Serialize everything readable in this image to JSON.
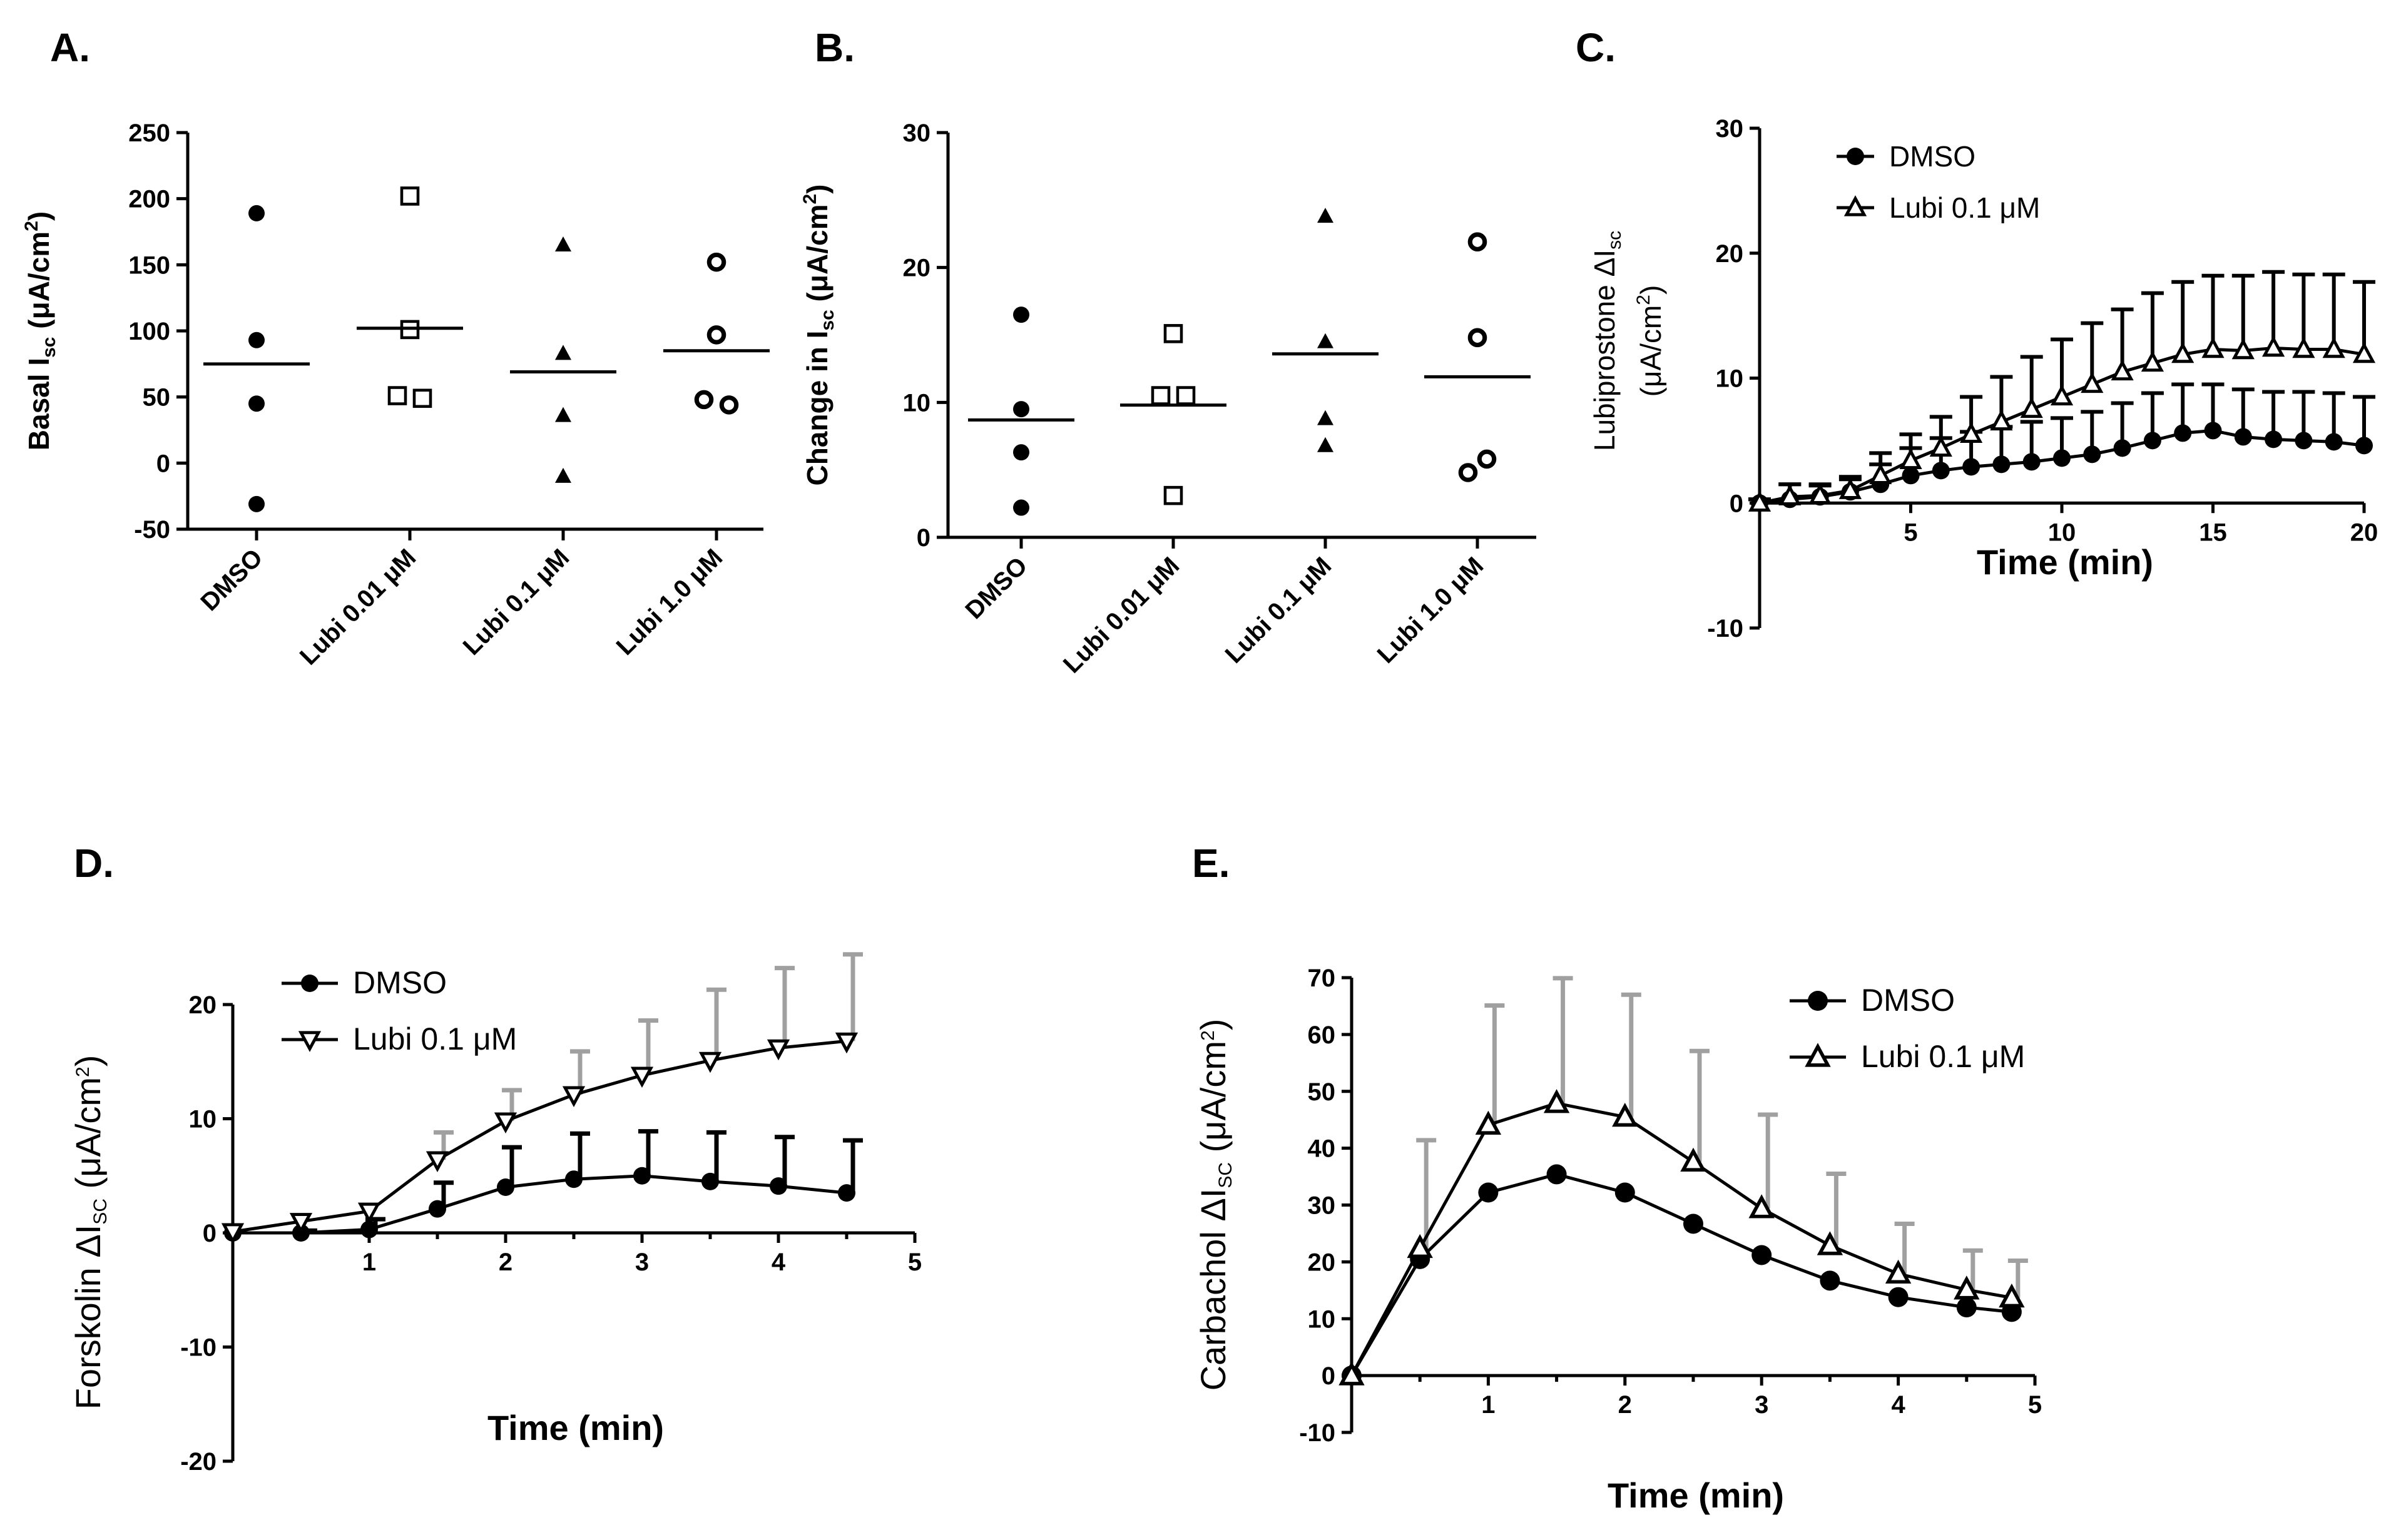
{
  "chart_data": [
    {
      "id": "A",
      "panel_label": "A.",
      "type": "scatter",
      "ylabel": "Basal I",
      "ylabel_sub": "sc",
      "ylabel_unit": "(μA/cm",
      "ylabel_sup": "2",
      "ylabel_close": ")",
      "ylim": [
        -50,
        250
      ],
      "yticks": [
        "-50",
        "0",
        "50",
        "100",
        "150",
        "200",
        "250"
      ],
      "categories": [
        "DMSO",
        "Lubi 0.01 μM",
        "Lubi 0.1 μM",
        "Lubi 1.0 μM"
      ],
      "markers": [
        "circle-filled",
        "square-open",
        "triangle-filled",
        "circle-open"
      ],
      "points": [
        [
          189,
          93,
          45,
          -31
        ],
        [
          202,
          101,
          51,
          49
        ],
        [
          165,
          83,
          36,
          -10
        ],
        [
          152,
          97,
          48,
          44
        ]
      ],
      "means": [
        75,
        102,
        69,
        85
      ]
    },
    {
      "id": "B",
      "panel_label": "B.",
      "type": "scatter",
      "ylabel": "Change in I",
      "ylabel_sub": "sc",
      "ylabel_unit": "(μA/cm",
      "ylabel_sup": "2",
      "ylabel_close": ")",
      "ylim": [
        0,
        30
      ],
      "yticks": [
        "0",
        "10",
        "20",
        "30"
      ],
      "categories": [
        "DMSO",
        "Lubi 0.01 μM",
        "Lubi 0.1 μM",
        "Lubi 1.0 μM"
      ],
      "markers": [
        "circle-filled",
        "square-open",
        "triangle-filled",
        "circle-open"
      ],
      "points": [
        [
          16.5,
          9.5,
          6.3,
          2.2
        ],
        [
          15.1,
          10.5,
          10.5,
          3.1
        ],
        [
          23.8,
          14.5,
          8.8,
          6.8
        ],
        [
          21.9,
          14.8,
          5.8,
          4.8
        ]
      ],
      "means": [
        8.7,
        9.8,
        13.6,
        11.9
      ]
    },
    {
      "id": "C",
      "panel_label": "C.",
      "type": "line",
      "ylabel": "Lubiprostone ΔI",
      "ylabel_sub": "sc",
      "ylabel2": "(μA/cm",
      "ylabel2_sup": "2",
      "ylabel2_close": ")",
      "xlabel": "Time (min)",
      "xlim": [
        0,
        20
      ],
      "ylim": [
        -10,
        30
      ],
      "xticks": [
        "5",
        "10",
        "15",
        "20"
      ],
      "yticks": [
        "-10",
        "0",
        "10",
        "20",
        "30"
      ],
      "series": [
        {
          "name": "DMSO",
          "marker": "circle-filled",
          "x": [
            0,
            1,
            2,
            3,
            4,
            5,
            6,
            7,
            8,
            9,
            10,
            11,
            12,
            13,
            14,
            15,
            16,
            17,
            18,
            19,
            20
          ],
          "y": [
            0,
            0.3,
            0.5,
            0.9,
            1.5,
            2.2,
            2.6,
            2.9,
            3.1,
            3.3,
            3.6,
            3.9,
            4.4,
            5.0,
            5.6,
            5.8,
            5.3,
            5.1,
            5.0,
            4.9,
            4.6
          ],
          "err": [
            0.3,
            1.2,
            0.9,
            1.0,
            1.6,
            2.2,
            2.6,
            2.8,
            3.0,
            3.2,
            3.2,
            3.4,
            3.6,
            3.8,
            3.9,
            3.7,
            3.8,
            3.8,
            3.9,
            3.9,
            3.9
          ]
        },
        {
          "name": "Lubi 0.1 μM",
          "marker": "triangle-open",
          "x": [
            0,
            1,
            2,
            3,
            4,
            5,
            6,
            7,
            8,
            9,
            10,
            11,
            12,
            13,
            14,
            15,
            16,
            17,
            18,
            19,
            20
          ],
          "y": [
            0,
            0.5,
            0.6,
            1.0,
            2.2,
            3.4,
            4.4,
            5.5,
            6.5,
            7.5,
            8.5,
            9.5,
            10.5,
            11.2,
            11.9,
            12.3,
            12.2,
            12.4,
            12.3,
            12.3,
            11.9
          ],
          "err": [
            0.3,
            1.0,
            0.9,
            1.1,
            1.8,
            2.1,
            2.5,
            3.0,
            3.6,
            4.2,
            4.6,
            4.9,
            5.0,
            5.6,
            5.8,
            5.9,
            6.0,
            6.1,
            6.0,
            6.0,
            5.8
          ]
        }
      ]
    },
    {
      "id": "D",
      "panel_label": "D.",
      "type": "line",
      "ylabel": "Forskolin ΔI",
      "ylabel_sub": "SC",
      "ylabel_unit": "(μA/cm",
      "ylabel_sup": "2",
      "ylabel_close": ")",
      "xlabel": "Time (min)",
      "xlim": [
        0,
        5
      ],
      "ylim": [
        -20,
        20
      ],
      "xticks": [
        "1",
        "2",
        "3",
        "4",
        "5"
      ],
      "yticks": [
        "-20",
        "-10",
        "0",
        "10",
        "20"
      ],
      "series": [
        {
          "name": "DMSO",
          "marker": "circle-filled",
          "x": [
            0,
            0.5,
            1,
            1.5,
            2,
            2.5,
            3,
            3.5,
            4,
            4.5
          ],
          "y": [
            0,
            0,
            0.3,
            2.1,
            4.0,
            4.7,
            5.0,
            4.5,
            4.1,
            3.5
          ],
          "err": [
            0,
            0.2,
            0.9,
            2.3,
            3.5,
            4.0,
            3.9,
            4.3,
            4.3,
            4.6
          ]
        },
        {
          "name": "Lubi 0.1 μM",
          "marker": "triangle-down-open",
          "x": [
            0,
            0.5,
            1,
            1.5,
            2,
            2.5,
            3,
            3.5,
            4,
            4.5
          ],
          "y": [
            0.1,
            1.0,
            1.9,
            6.4,
            9.8,
            12.1,
            13.8,
            15.1,
            16.2,
            16.8
          ],
          "err": [
            0,
            0,
            0,
            2.4,
            2.7,
            3.8,
            4.8,
            6.2,
            7.0,
            7.6
          ]
        }
      ]
    },
    {
      "id": "E",
      "panel_label": "E.",
      "type": "line",
      "ylabel": "Carbachol ΔI",
      "ylabel_sub": "SC",
      "ylabel_unit": "(μA/cm",
      "ylabel_sup": "2",
      "ylabel_close": ")",
      "xlabel": "Time (min)",
      "xlim": [
        0,
        5
      ],
      "ylim": [
        -10,
        70
      ],
      "xticks": [
        "1",
        "2",
        "3",
        "4",
        "5"
      ],
      "yticks": [
        "-10",
        "0",
        "10",
        "20",
        "30",
        "40",
        "50",
        "60",
        "70"
      ],
      "series": [
        {
          "name": "DMSO",
          "marker": "circle-filled",
          "x": [
            0,
            0.5,
            1,
            1.5,
            2,
            2.5,
            3,
            3.5,
            4,
            4.5,
            4.83
          ],
          "y": [
            0,
            20.5,
            32.2,
            35.4,
            32.2,
            26.7,
            21.2,
            16.7,
            13.8,
            12.0,
            11.2
          ],
          "err": [
            0,
            0,
            0,
            0,
            0,
            0,
            0,
            0,
            0,
            0,
            0
          ]
        },
        {
          "name": "Lubi 0.1 μM",
          "marker": "triangle-open",
          "x": [
            0,
            0.5,
            1,
            1.5,
            2,
            2.5,
            3,
            3.5,
            4,
            4.5,
            4.83
          ],
          "y": [
            0,
            22.4,
            44.1,
            47.9,
            45.5,
            37.6,
            29.4,
            22.9,
            17.9,
            15.1,
            13.7
          ],
          "err": [
            0,
            19.0,
            21.0,
            22.0,
            21.5,
            19.5,
            16.5,
            12.6,
            8.8,
            6.9,
            6.5
          ]
        }
      ]
    }
  ]
}
